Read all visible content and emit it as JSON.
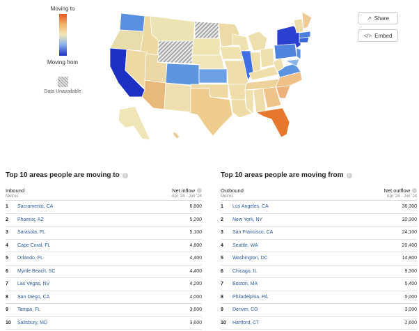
{
  "legend": {
    "top_label": "Moving to",
    "bottom_label": "Moving from",
    "unavailable_label": "Data Unavailable",
    "colors": {
      "to_strong": "#e8561f",
      "neutral": "#f2e7b8",
      "from_strong": "#1d2fc9"
    }
  },
  "map": {
    "icon": "us-states-choropleth-map"
  },
  "buttons": {
    "share": "Share",
    "embed": "Embed"
  },
  "moving_to": {
    "title": "Top 10 areas people are moving to",
    "column_left": "Inbound",
    "column_left_sub": "Metros",
    "column_right": "Net inflow",
    "column_right_sub": "Apr '24 - Jun '24",
    "rows": [
      {
        "rank": "1",
        "city": "Sacramento, CA",
        "value": "6,800"
      },
      {
        "rank": "2",
        "city": "Phoenix, AZ",
        "value": "5,200"
      },
      {
        "rank": "3",
        "city": "Sarasota, FL",
        "value": "5,100"
      },
      {
        "rank": "4",
        "city": "Cape Coral, FL",
        "value": "4,800"
      },
      {
        "rank": "5",
        "city": "Orlando, FL",
        "value": "4,400"
      },
      {
        "rank": "6",
        "city": "Myrtle Beach, SC",
        "value": "4,400"
      },
      {
        "rank": "7",
        "city": "Las Vegas, NV",
        "value": "4,200"
      },
      {
        "rank": "8",
        "city": "San Diego, CA",
        "value": "4,000"
      },
      {
        "rank": "9",
        "city": "Tampa, FL",
        "value": "3,600"
      },
      {
        "rank": "10",
        "city": "Salisbury, MD",
        "value": "3,600"
      }
    ]
  },
  "moving_from": {
    "title": "Top 10 areas people are moving from",
    "column_left": "Outbound",
    "column_left_sub": "Metros",
    "column_right": "Net outflow",
    "column_right_sub": "Apr '24 - Jun '24",
    "rows": [
      {
        "rank": "1",
        "city": "Los Angeles, CA",
        "value": "36,300"
      },
      {
        "rank": "2",
        "city": "New York, NY",
        "value": "32,300"
      },
      {
        "rank": "3",
        "city": "San Francisco, CA",
        "value": "24,100"
      },
      {
        "rank": "4",
        "city": "Seattle, WA",
        "value": "20,400"
      },
      {
        "rank": "5",
        "city": "Washington, DC",
        "value": "14,800"
      },
      {
        "rank": "6",
        "city": "Chicago, IL",
        "value": "9,300"
      },
      {
        "rank": "7",
        "city": "Boston, MA",
        "value": "5,400"
      },
      {
        "rank": "8",
        "city": "Philadelphia, PA",
        "value": "5,000"
      },
      {
        "rank": "9",
        "city": "Denver, CO",
        "value": "3,000"
      },
      {
        "rank": "10",
        "city": "Hartford, CT",
        "value": "2,600"
      }
    ]
  }
}
